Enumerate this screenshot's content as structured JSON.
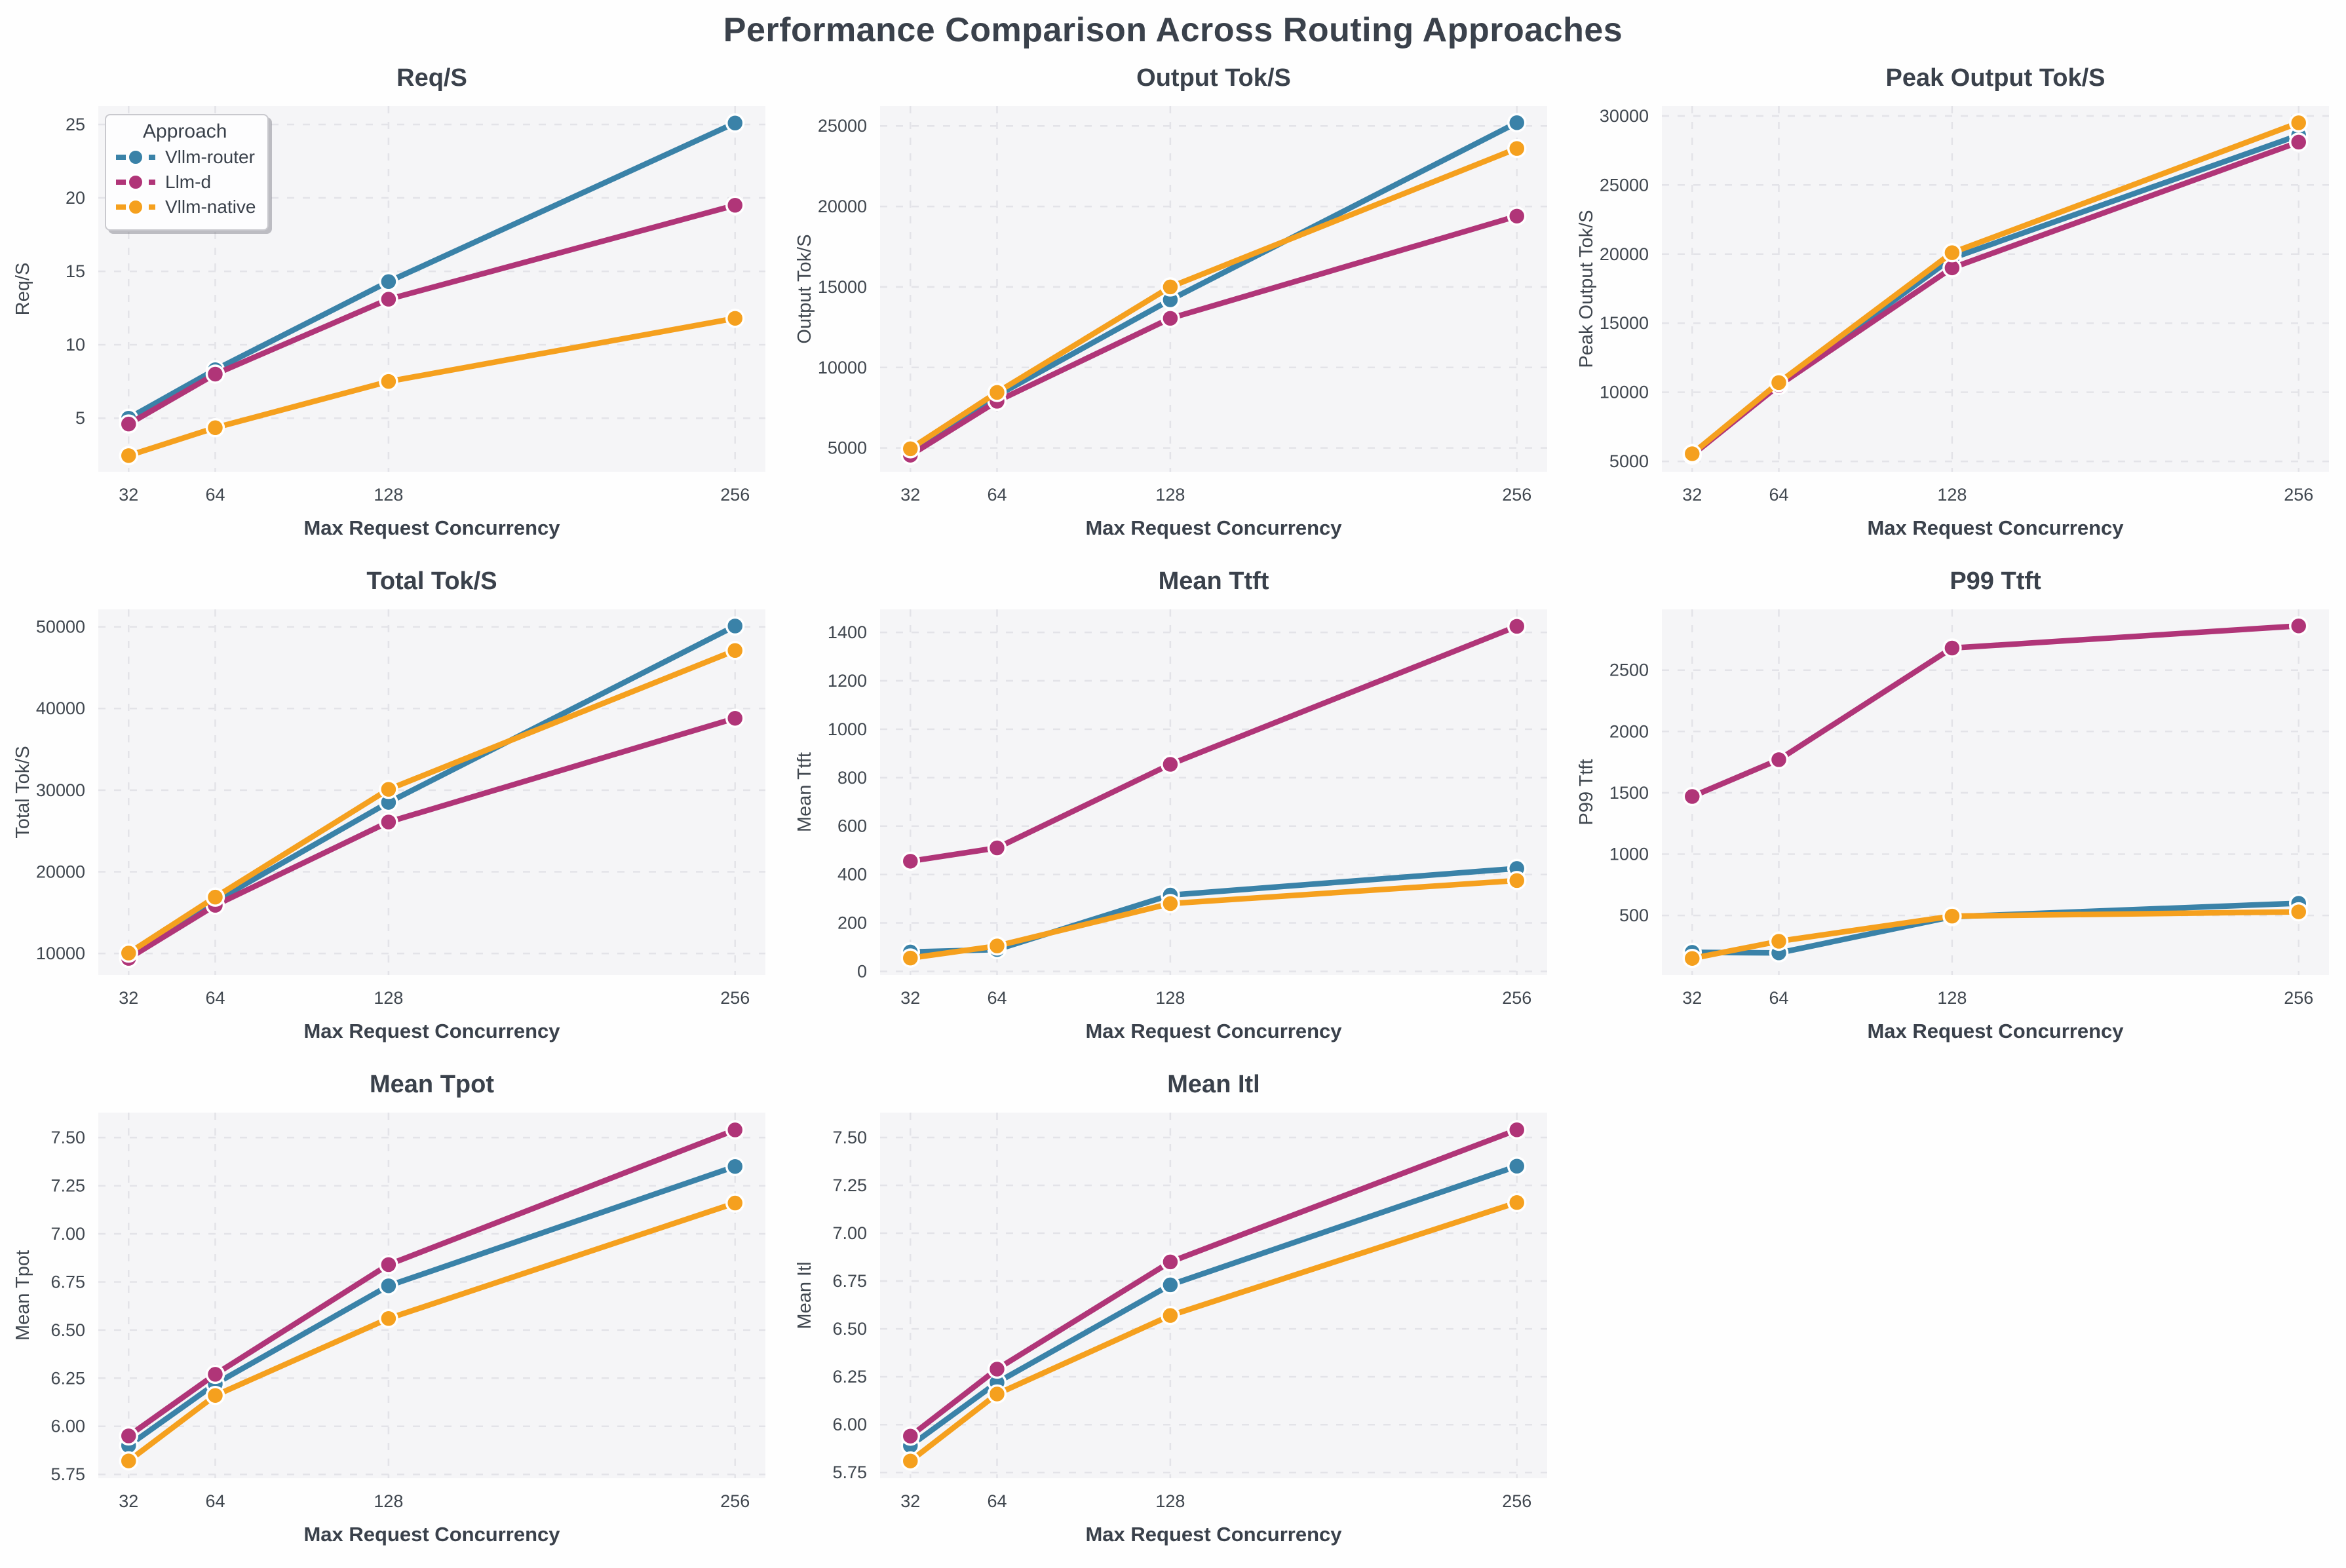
{
  "page_title": "Performance Comparison Across Routing Approaches",
  "colors": {
    "Vllm-router": "#3a82a8",
    "Llm-d": "#b03578",
    "Vllm-native": "#f5a01e",
    "panel_background": "#f5f5f7",
    "gridline": "#e3e3e8",
    "text": "#3a414b",
    "tick_text": "#40474f"
  },
  "legend": {
    "title": "Approach",
    "entries": [
      {
        "label": "Vllm-router",
        "color": "#3a82a8"
      },
      {
        "label": "Llm-d",
        "color": "#b03578"
      },
      {
        "label": "Vllm-native",
        "color": "#f5a01e"
      }
    ]
  },
  "xlabel": "Max Request Concurrency",
  "x_tick_labels": [
    "32",
    "64",
    "128",
    "256"
  ],
  "chart_data": [
    {
      "type": "line",
      "title": "Req/S",
      "ylabel": "Req/S",
      "x": [
        32,
        64,
        128,
        256
      ],
      "xlim": [
        20.8,
        267.2
      ],
      "ylim": [
        1.35,
        26.25
      ],
      "yticks": [
        5,
        10,
        15,
        20,
        25
      ],
      "ytick_labels": [
        "5",
        "10",
        "15",
        "20",
        "25"
      ],
      "grid": "dashed",
      "legend_position": "upper left",
      "series": [
        {
          "name": "Vllm-router",
          "values": [
            5.0,
            8.3,
            14.3,
            25.1
          ]
        },
        {
          "name": "Llm-d",
          "values": [
            4.6,
            8.0,
            13.1,
            19.5
          ]
        },
        {
          "name": "Vllm-native",
          "values": [
            2.45,
            4.35,
            7.5,
            11.8
          ]
        }
      ]
    },
    {
      "type": "line",
      "title": "Output Tok/S",
      "ylabel": "Output Tok/S",
      "x": [
        32,
        64,
        128,
        256
      ],
      "xlim": [
        20.8,
        267.2
      ],
      "ylim": [
        3520,
        26230
      ],
      "yticks": [
        5000,
        10000,
        15000,
        20000,
        25000
      ],
      "ytick_labels": [
        "5000",
        "10000",
        "15000",
        "20000",
        "25000"
      ],
      "grid": "dashed",
      "series": [
        {
          "name": "Vllm-router",
          "values": [
            4800,
            8250,
            14200,
            25200
          ]
        },
        {
          "name": "Llm-d",
          "values": [
            4550,
            7900,
            13050,
            19400
          ]
        },
        {
          "name": "Vllm-native",
          "values": [
            4950,
            8450,
            15000,
            23600
          ]
        }
      ]
    },
    {
      "type": "line",
      "title": "Peak Output Tok/S",
      "ylabel": "Peak Output Tok/S",
      "x": [
        32,
        64,
        128,
        256
      ],
      "xlim": [
        20.8,
        267.2
      ],
      "ylim": [
        4245,
        30705
      ],
      "yticks": [
        5000,
        10000,
        15000,
        20000,
        25000,
        30000
      ],
      "ytick_labels": [
        "5000",
        "10000",
        "15000",
        "20000",
        "25000",
        "30000"
      ],
      "grid": "dashed",
      "series": [
        {
          "name": "Vllm-router",
          "values": [
            5500,
            10600,
            19700,
            28600
          ]
        },
        {
          "name": "Llm-d",
          "values": [
            5450,
            10500,
            19000,
            28100
          ]
        },
        {
          "name": "Vllm-native",
          "values": [
            5550,
            10700,
            20100,
            29500
          ]
        }
      ]
    },
    {
      "type": "line",
      "title": "Total Tok/S",
      "ylabel": "Total Tok/S",
      "x": [
        32,
        64,
        128,
        256
      ],
      "xlim": [
        20.8,
        267.2
      ],
      "ylim": [
        7365,
        52135
      ],
      "yticks": [
        10000,
        20000,
        30000,
        40000,
        50000
      ],
      "ytick_labels": [
        "10000",
        "20000",
        "30000",
        "40000",
        "50000"
      ],
      "grid": "dashed",
      "series": [
        {
          "name": "Vllm-router",
          "values": [
            9900,
            16400,
            28500,
            50100
          ]
        },
        {
          "name": "Llm-d",
          "values": [
            9400,
            15900,
            26100,
            38800
          ]
        },
        {
          "name": "Vllm-native",
          "values": [
            10050,
            16900,
            30100,
            47100
          ]
        }
      ]
    },
    {
      "type": "line",
      "title": "Mean Ttft",
      "ylabel": "Mean Ttft",
      "x": [
        32,
        64,
        128,
        256
      ],
      "xlim": [
        20.8,
        267.2
      ],
      "ylim": [
        -15,
        1495
      ],
      "yticks": [
        0,
        200,
        400,
        600,
        800,
        1000,
        1200,
        1400
      ],
      "ytick_labels": [
        "0",
        "200",
        "400",
        "600",
        "800",
        "1000",
        "1200",
        "1400"
      ],
      "grid": "dashed",
      "series": [
        {
          "name": "Vllm-router",
          "values": [
            80,
            90,
            315,
            425
          ]
        },
        {
          "name": "Llm-d",
          "values": [
            455,
            510,
            855,
            1425
          ]
        },
        {
          "name": "Vllm-native",
          "values": [
            55,
            105,
            280,
            375
          ]
        }
      ]
    },
    {
      "type": "line",
      "title": "P99 Ttft",
      "ylabel": "P99 Ttft",
      "x": [
        32,
        64,
        128,
        256
      ],
      "xlim": [
        20.8,
        267.2
      ],
      "ylim": [
        15,
        2995
      ],
      "yticks": [
        500,
        1000,
        1500,
        2000,
        2500
      ],
      "ytick_labels": [
        "500",
        "1000",
        "1500",
        "2000",
        "2500"
      ],
      "grid": "dashed",
      "series": [
        {
          "name": "Vllm-router",
          "values": [
            200,
            195,
            490,
            600
          ]
        },
        {
          "name": "Llm-d",
          "values": [
            1470,
            1770,
            2680,
            2860
          ]
        },
        {
          "name": "Vllm-native",
          "values": [
            150,
            290,
            495,
            530
          ]
        }
      ]
    },
    {
      "type": "line",
      "title": "Mean Tpot",
      "ylabel": "Mean Tpot",
      "x": [
        32,
        64,
        128,
        256
      ],
      "xlim": [
        20.8,
        267.2
      ],
      "ylim": [
        5.73,
        7.63
      ],
      "yticks": [
        5.75,
        6.0,
        6.25,
        6.5,
        6.75,
        7.0,
        7.25,
        7.5
      ],
      "ytick_labels": [
        "5.75",
        "6.00",
        "6.25",
        "6.50",
        "6.75",
        "7.00",
        "7.25",
        "7.50"
      ],
      "grid": "dashed",
      "series": [
        {
          "name": "Vllm-router",
          "values": [
            5.9,
            6.22,
            6.73,
            7.35
          ]
        },
        {
          "name": "Llm-d",
          "values": [
            5.95,
            6.27,
            6.84,
            7.54
          ]
        },
        {
          "name": "Vllm-native",
          "values": [
            5.82,
            6.16,
            6.56,
            7.16
          ]
        }
      ]
    },
    {
      "type": "line",
      "title": "Mean Itl",
      "ylabel": "Mean Itl",
      "x": [
        32,
        64,
        128,
        256
      ],
      "xlim": [
        20.8,
        267.2
      ],
      "ylim": [
        5.72,
        7.63
      ],
      "yticks": [
        5.75,
        6.0,
        6.25,
        6.5,
        6.75,
        7.0,
        7.25,
        7.5
      ],
      "ytick_labels": [
        "5.75",
        "6.00",
        "6.25",
        "6.50",
        "6.75",
        "7.00",
        "7.25",
        "7.50"
      ],
      "grid": "dashed",
      "series": [
        {
          "name": "Vllm-router",
          "values": [
            5.89,
            6.22,
            6.73,
            7.35
          ]
        },
        {
          "name": "Llm-d",
          "values": [
            5.94,
            6.29,
            6.85,
            7.54
          ]
        },
        {
          "name": "Vllm-native",
          "values": [
            5.81,
            6.16,
            6.57,
            7.16
          ]
        }
      ]
    }
  ]
}
